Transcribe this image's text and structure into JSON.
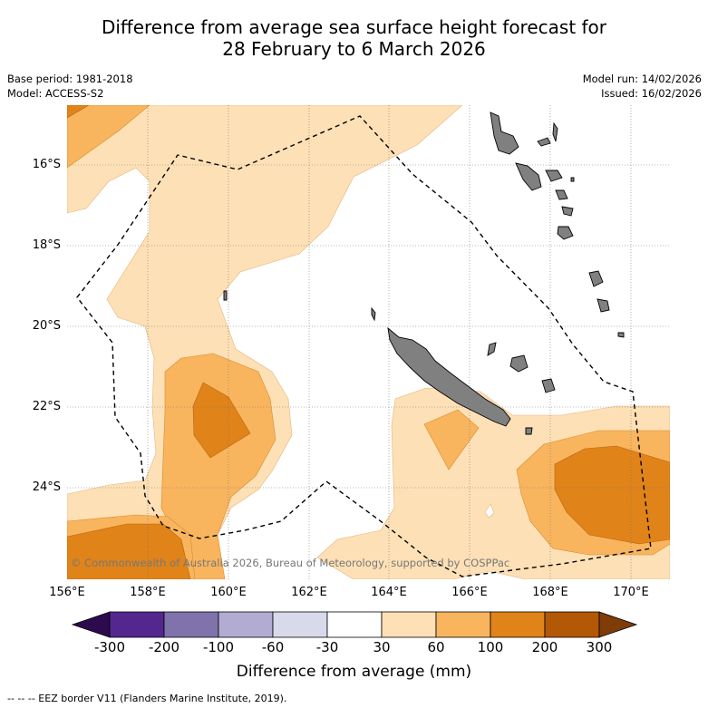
{
  "title": {
    "line1": "Difference from average sea surface height forecast for",
    "line2": "28 February to 6 March 2026"
  },
  "meta_left": {
    "base_period": "Base period: 1981-2018",
    "model": "Model: ACCESS-S2"
  },
  "meta_right": {
    "model_run": "Model run: 14/02/2026",
    "issued": "Issued: 16/02/2026"
  },
  "lat_labels": [
    "16°S",
    "18°S",
    "20°S",
    "22°S",
    "24°S"
  ],
  "lon_labels": [
    "156°E",
    "158°E",
    "160°E",
    "162°E",
    "164°E",
    "166°E",
    "168°E",
    "170°E"
  ],
  "copyright": "© Commonwealth of Australia 2026, Bureau of Meteorology, supported by COSPPac",
  "colorbar": {
    "title": "Difference from average (mm)",
    "ticks": [
      "-300",
      "-200",
      "-100",
      "-60",
      "-30",
      "30",
      "60",
      "100",
      "200",
      "300"
    ],
    "colors": [
      "#2d0a4e",
      "#54278f",
      "#8073ac",
      "#b2abd2",
      "#d8daeb",
      "#ffffff",
      "#fde0b6",
      "#f8b55e",
      "#e08319",
      "#b35806",
      "#7f3b08"
    ]
  },
  "footer": "--  --  -- EEZ border V11 (Flanders Marine Institute, 2019).",
  "colors": {
    "land": "#808080",
    "eez": "#000000",
    "level_30_60": "#fde0b6",
    "level_60_100": "#f8b55e",
    "level_100_200": "#e08319"
  }
}
